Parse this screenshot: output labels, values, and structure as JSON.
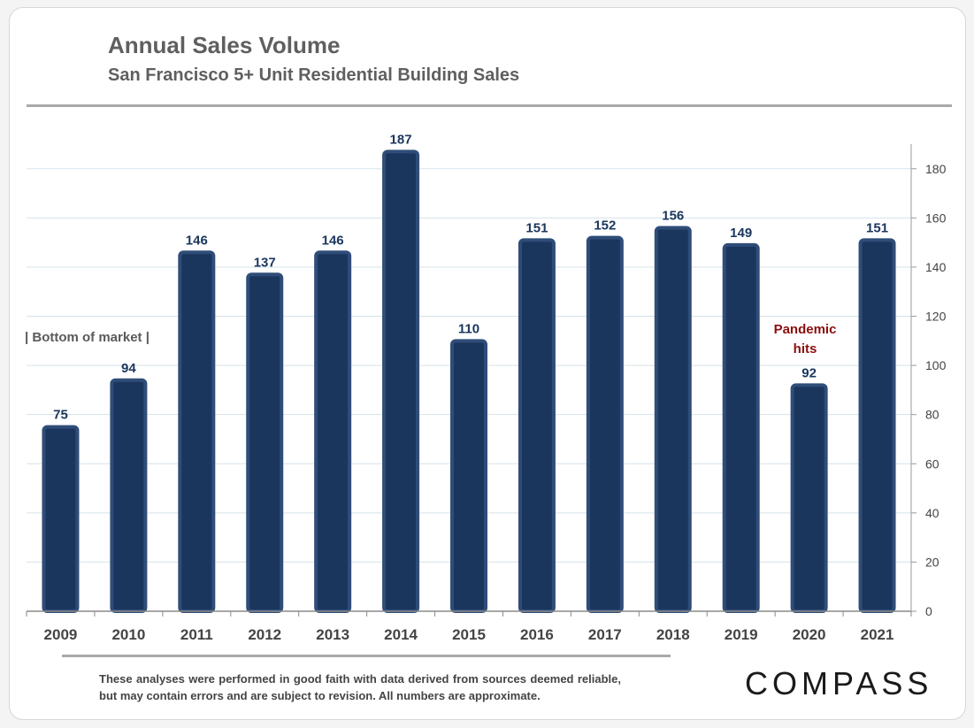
{
  "title": "Annual Sales Volume",
  "subtitle": "San Francisco 5+ Unit Residential Building Sales",
  "annotations": {
    "bottom": "| Bottom of market |",
    "pandemic_line1": "Pandemic",
    "pandemic_line2": "hits"
  },
  "footer": {
    "disclaimer": "These analyses were performed in good faith with data derived from sources deemed reliable, but may contain errors and are subject to revision. All numbers are approximate.",
    "logo": "COMPASS"
  },
  "colors": {
    "bar": "#1b365d",
    "bar_edge": "#2f4d78",
    "label": "#1b365d",
    "grid": "#d5e3ea",
    "pandemic": "#8b0d0d"
  },
  "chart_data": {
    "type": "bar",
    "title": "Annual Sales Volume",
    "subtitle": "San Francisco 5+ Unit Residential Building Sales",
    "categories": [
      "2009",
      "2010",
      "2011",
      "2012",
      "2013",
      "2014",
      "2015",
      "2016",
      "2017",
      "2018",
      "2019",
      "2020",
      "2021"
    ],
    "values": [
      75,
      94,
      146,
      137,
      146,
      187,
      110,
      151,
      152,
      156,
      149,
      92,
      151
    ],
    "ylim": [
      0,
      190
    ],
    "yticks": [
      0,
      20,
      40,
      60,
      80,
      100,
      120,
      140,
      160,
      180
    ],
    "y_axis_side": "right",
    "grid": true,
    "data_labels": true
  }
}
